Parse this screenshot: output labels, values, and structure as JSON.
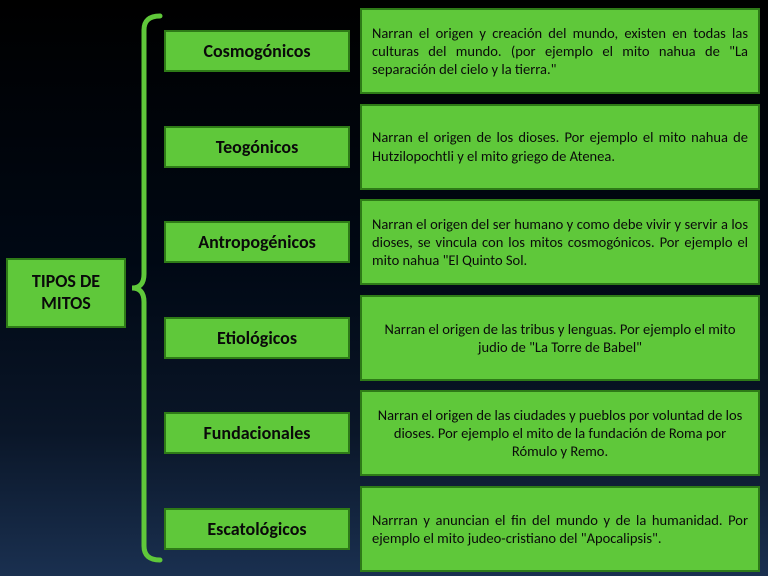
{
  "colors": {
    "box_bg": "#5fc83a",
    "box_border": "#2e7b17",
    "text": "#0a0a0a",
    "bracket": "#5fc83a"
  },
  "root": {
    "title": "TIPOS DE MITOS",
    "fontsize": 18
  },
  "categories": [
    {
      "label": "Cosmogónicos",
      "desc": "Narran el origen y creación del mundo, existen en todas las culturas del mundo. (por ejemplo el mito nahua de \"La separación del cielo y la tierra.\"",
      "align": "justify"
    },
    {
      "label": "Teogónicos",
      "desc": "Narran el origen de los dioses. Por ejemplo el mito nahua de Hutzilopochtli y el mito griego de Atenea.",
      "align": "justify"
    },
    {
      "label": "Antropogénicos",
      "desc": "Narran el origen del ser humano y como debe vivir y servir a los dioses, se vincula con los mitos cosmogónicos. Por ejemplo el mito nahua \"El Quinto Sol.",
      "align": "justify"
    },
    {
      "label": "Etiológicos",
      "desc": "Narran el origen de las tribus y lenguas. Por ejemplo el mito judio de \"La Torre de Babel\"",
      "align": "center"
    },
    {
      "label": "Fundacionales",
      "desc": "Narran el origen de las ciudades y pueblos por voluntad de los dioses. Por ejemplo el mito de la fundación de Roma por Rómulo y Remo.",
      "align": "center"
    },
    {
      "label": "Escatológicos",
      "desc": "Narrran y anuncian el fin del mundo y de la humanidad. Por ejemplo el mito judeo-cristiano del \"Apocalipsis\".",
      "align": "justify"
    }
  ],
  "bracket": {
    "stroke_width": 5
  }
}
